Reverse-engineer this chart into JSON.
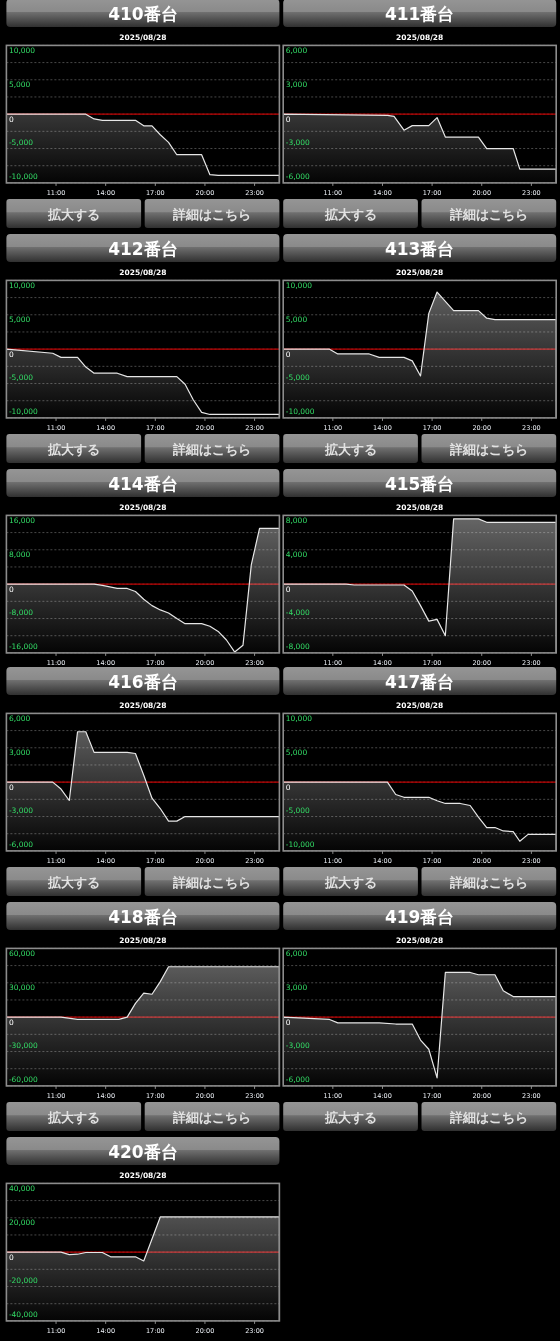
{
  "chart_data": [
    {
      "type": "area",
      "title": "410番台",
      "subtitle": "2025/08/28",
      "x": [
        8,
        12.8,
        13.3,
        13.8,
        15.8,
        16.3,
        16.8,
        17.3,
        17.8,
        18.3,
        19.8,
        20.3,
        20.8,
        24.5
      ],
      "values": [
        0,
        0,
        -700,
        -900,
        -900,
        -1700,
        -1700,
        -3000,
        -4100,
        -5900,
        -5900,
        -8800,
        -8900,
        -8900
      ],
      "color": "#e6e6e6",
      "xlim": [
        8,
        24.5
      ],
      "xticks": [
        {
          "value": 11,
          "label": "11:00"
        },
        {
          "value": 14,
          "label": "14:00"
        },
        {
          "value": 17,
          "label": "17:00"
        },
        {
          "value": 20,
          "label": "20:00"
        },
        {
          "value": 23,
          "label": "23:00"
        }
      ],
      "ylim": [
        -10000,
        10000
      ],
      "yticks": [
        {
          "value": -10000,
          "label": "-10,000"
        },
        {
          "value": -7500,
          "label": null
        },
        {
          "value": -5000,
          "label": "-5,000"
        },
        {
          "value": -2500,
          "label": null
        },
        {
          "value": 0,
          "label": "0"
        },
        {
          "value": 2500,
          "label": null
        },
        {
          "value": 5000,
          "label": "5,000"
        },
        {
          "value": 7500,
          "label": null
        },
        {
          "value": 10000,
          "label": "10,000"
        }
      ],
      "grid": "y",
      "ref_lines": [
        {
          "axis": "y",
          "value": 0,
          "color": "#c00000"
        }
      ],
      "annotations": [
        "拡大する",
        "詳細はこちら"
      ]
    },
    {
      "type": "area",
      "title": "411番台",
      "subtitle": "2025/08/28",
      "x": [
        8,
        14.3,
        14.7,
        15.3,
        15.8,
        16.8,
        17.3,
        17.8,
        19.8,
        20.3,
        21.9,
        22.3,
        24.5
      ],
      "values": [
        0,
        -100,
        -200,
        -1400,
        -1000,
        -1000,
        -300,
        -2000,
        -2000,
        -3000,
        -3000,
        -4800,
        -4800
      ],
      "color": "#e6e6e6",
      "xlim": [
        8,
        24.5
      ],
      "xticks": [
        {
          "value": 11,
          "label": "11:00"
        },
        {
          "value": 14,
          "label": "14:00"
        },
        {
          "value": 17,
          "label": "17:00"
        },
        {
          "value": 20,
          "label": "20:00"
        },
        {
          "value": 23,
          "label": "23:00"
        }
      ],
      "ylim": [
        -6000,
        6000
      ],
      "yticks": [
        {
          "value": -6000,
          "label": "-6,000"
        },
        {
          "value": -4500,
          "label": null
        },
        {
          "value": -3000,
          "label": "-3,000"
        },
        {
          "value": -1500,
          "label": null
        },
        {
          "value": 0,
          "label": "0"
        },
        {
          "value": 1500,
          "label": null
        },
        {
          "value": 3000,
          "label": "3,000"
        },
        {
          "value": 4500,
          "label": null
        },
        {
          "value": 6000,
          "label": "6,000"
        }
      ],
      "grid": "y",
      "ref_lines": [
        {
          "axis": "y",
          "value": 0,
          "color": "#c00000"
        }
      ],
      "annotations": [
        "拡大する",
        "詳細はこちら"
      ]
    },
    {
      "type": "area",
      "title": "412番台",
      "subtitle": "2025/08/28",
      "x": [
        8,
        10.8,
        11.3,
        12.3,
        12.8,
        13.3,
        14.7,
        15.3,
        18.3,
        18.8,
        19.3,
        19.8,
        20.3,
        24.5
      ],
      "values": [
        0,
        -600,
        -1200,
        -1200,
        -2600,
        -3500,
        -3500,
        -4000,
        -4000,
        -5100,
        -7400,
        -9200,
        -9500,
        -9500
      ],
      "color": "#e6e6e6",
      "xlim": [
        8,
        24.5
      ],
      "xticks": [
        {
          "value": 11,
          "label": "11:00"
        },
        {
          "value": 14,
          "label": "14:00"
        },
        {
          "value": 17,
          "label": "17:00"
        },
        {
          "value": 20,
          "label": "20:00"
        },
        {
          "value": 23,
          "label": "23:00"
        }
      ],
      "ylim": [
        -10000,
        10000
      ],
      "yticks": [
        {
          "value": -10000,
          "label": "-10,000"
        },
        {
          "value": -7500,
          "label": null
        },
        {
          "value": -5000,
          "label": "-5,000"
        },
        {
          "value": -2500,
          "label": null
        },
        {
          "value": 0,
          "label": "0"
        },
        {
          "value": 2500,
          "label": null
        },
        {
          "value": 5000,
          "label": "5,000"
        },
        {
          "value": 7500,
          "label": null
        },
        {
          "value": 10000,
          "label": "10,000"
        }
      ],
      "grid": "y",
      "ref_lines": [
        {
          "axis": "y",
          "value": 0,
          "color": "#c00000"
        }
      ],
      "annotations": [
        "拡大する",
        "詳細はこちら"
      ]
    },
    {
      "type": "area",
      "title": "413番台",
      "subtitle": "2025/08/28",
      "x": [
        8,
        10.8,
        11.3,
        13.2,
        13.8,
        15.3,
        15.8,
        16.3,
        16.8,
        17.3,
        18.3,
        19.8,
        20.3,
        20.8,
        24.5
      ],
      "values": [
        0,
        0,
        -700,
        -700,
        -1200,
        -1200,
        -1700,
        -3900,
        5200,
        8300,
        5600,
        5600,
        4500,
        4300,
        4300
      ],
      "color": "#e6e6e6",
      "xlim": [
        8,
        24.5
      ],
      "xticks": [
        {
          "value": 11,
          "label": "11:00"
        },
        {
          "value": 14,
          "label": "14:00"
        },
        {
          "value": 17,
          "label": "17:00"
        },
        {
          "value": 20,
          "label": "20:00"
        },
        {
          "value": 23,
          "label": "23:00"
        }
      ],
      "ylim": [
        -10000,
        10000
      ],
      "yticks": [
        {
          "value": -10000,
          "label": "-10,000"
        },
        {
          "value": -7500,
          "label": null
        },
        {
          "value": -5000,
          "label": "-5,000"
        },
        {
          "value": -2500,
          "label": null
        },
        {
          "value": 0,
          "label": "0"
        },
        {
          "value": 2500,
          "label": null
        },
        {
          "value": 5000,
          "label": "5,000"
        },
        {
          "value": 7500,
          "label": null
        },
        {
          "value": 10000,
          "label": "10,000"
        }
      ],
      "grid": "y",
      "ref_lines": [
        {
          "axis": "y",
          "value": 0,
          "color": "#c00000"
        }
      ],
      "annotations": [
        "拡大する",
        "詳細はこちら"
      ]
    },
    {
      "type": "area",
      "title": "414番台",
      "subtitle": "2025/08/28",
      "x": [
        8,
        13.3,
        13.8,
        14.7,
        15.3,
        15.8,
        16.3,
        16.8,
        17.3,
        17.8,
        18.3,
        18.8,
        19.8,
        20.3,
        20.8,
        21.3,
        21.8,
        22.3,
        22.8,
        23.3,
        24.5
      ],
      "values": [
        0,
        0,
        -300,
        -1000,
        -1000,
        -1700,
        -3500,
        -5000,
        -6000,
        -6700,
        -8000,
        -9200,
        -9200,
        -9800,
        -11000,
        -13000,
        -15800,
        -14200,
        4500,
        13000,
        13000
      ],
      "color": "#e6e6e6",
      "xlim": [
        8,
        24.5
      ],
      "xticks": [
        {
          "value": 11,
          "label": "11:00"
        },
        {
          "value": 14,
          "label": "14:00"
        },
        {
          "value": 17,
          "label": "17:00"
        },
        {
          "value": 20,
          "label": "20:00"
        },
        {
          "value": 23,
          "label": "23:00"
        }
      ],
      "ylim": [
        -16000,
        16000
      ],
      "yticks": [
        {
          "value": -16000,
          "label": "-16,000"
        },
        {
          "value": -12000,
          "label": null
        },
        {
          "value": -8000,
          "label": "-8,000"
        },
        {
          "value": -4000,
          "label": null
        },
        {
          "value": 0,
          "label": "0"
        },
        {
          "value": 4000,
          "label": null
        },
        {
          "value": 8000,
          "label": "8,000"
        },
        {
          "value": 12000,
          "label": null
        },
        {
          "value": 16000,
          "label": "16,000"
        }
      ],
      "grid": "y",
      "ref_lines": [
        {
          "axis": "y",
          "value": 0,
          "color": "#c00000"
        }
      ]
    },
    {
      "type": "area",
      "title": "415番台",
      "subtitle": "2025/08/28",
      "x": [
        8,
        11.8,
        12.3,
        15.3,
        15.8,
        16.3,
        16.8,
        17.3,
        17.8,
        18.3,
        19.8,
        20.3,
        24.5
      ],
      "values": [
        0,
        0,
        -100,
        -100,
        -800,
        -2500,
        -4300,
        -4100,
        -6000,
        7600,
        7600,
        7200,
        7200
      ],
      "color": "#e6e6e6",
      "xlim": [
        8,
        24.5
      ],
      "xticks": [
        {
          "value": 11,
          "label": "11:00"
        },
        {
          "value": 14,
          "label": "14:00"
        },
        {
          "value": 17,
          "label": "17:00"
        },
        {
          "value": 20,
          "label": "20:00"
        },
        {
          "value": 23,
          "label": "23:00"
        }
      ],
      "ylim": [
        -8000,
        8000
      ],
      "yticks": [
        {
          "value": -8000,
          "label": "-8,000"
        },
        {
          "value": -6000,
          "label": null
        },
        {
          "value": -4000,
          "label": "-4,000"
        },
        {
          "value": -2000,
          "label": null
        },
        {
          "value": 0,
          "label": "0"
        },
        {
          "value": 2000,
          "label": null
        },
        {
          "value": 4000,
          "label": "4,000"
        },
        {
          "value": 6000,
          "label": null
        },
        {
          "value": 8000,
          "label": "8,000"
        }
      ],
      "grid": "y",
      "ref_lines": [
        {
          "axis": "y",
          "value": 0,
          "color": "#c00000"
        }
      ]
    },
    {
      "type": "area",
      "title": "416番台",
      "subtitle": "2025/08/28",
      "x": [
        8,
        10.8,
        11.3,
        11.8,
        12.3,
        12.8,
        13.3,
        15.3,
        15.8,
        16.3,
        16.8,
        17.3,
        17.8,
        18.3,
        18.8,
        24.5
      ],
      "values": [
        0,
        0,
        -600,
        -1600,
        4400,
        4400,
        2600,
        2600,
        2500,
        600,
        -1400,
        -2300,
        -3400,
        -3400,
        -3000,
        -3000
      ],
      "color": "#e6e6e6",
      "xlim": [
        8,
        24.5
      ],
      "xticks": [
        {
          "value": 11,
          "label": "11:00"
        },
        {
          "value": 14,
          "label": "14:00"
        },
        {
          "value": 17,
          "label": "17:00"
        },
        {
          "value": 20,
          "label": "20:00"
        },
        {
          "value": 23,
          "label": "23:00"
        }
      ],
      "ylim": [
        -6000,
        6000
      ],
      "yticks": [
        {
          "value": -6000,
          "label": "-6,000"
        },
        {
          "value": -4500,
          "label": null
        },
        {
          "value": -3000,
          "label": "-3,000"
        },
        {
          "value": -1500,
          "label": null
        },
        {
          "value": 0,
          "label": "0"
        },
        {
          "value": 1500,
          "label": null
        },
        {
          "value": 3000,
          "label": "3,000"
        },
        {
          "value": 4500,
          "label": null
        },
        {
          "value": 6000,
          "label": "6,000"
        }
      ],
      "grid": "y",
      "ref_lines": [
        {
          "axis": "y",
          "value": 0,
          "color": "#c00000"
        }
      ],
      "annotations": [
        "拡大する",
        "詳細はこちら"
      ]
    },
    {
      "type": "area",
      "title": "417番台",
      "subtitle": "2025/08/28",
      "x": [
        8,
        14.3,
        14.8,
        15.3,
        16.8,
        17.3,
        17.8,
        18.7,
        19.3,
        19.8,
        20.3,
        20.8,
        21.3,
        21.9,
        22.3,
        22.8,
        24.5
      ],
      "values": [
        0,
        0,
        -1800,
        -2200,
        -2200,
        -2700,
        -3100,
        -3100,
        -3400,
        -5100,
        -6600,
        -6600,
        -7100,
        -7200,
        -8600,
        -7600,
        -7600
      ],
      "color": "#e6e6e6",
      "xlim": [
        8,
        24.5
      ],
      "xticks": [
        {
          "value": 11,
          "label": "11:00"
        },
        {
          "value": 14,
          "label": "14:00"
        },
        {
          "value": 17,
          "label": "17:00"
        },
        {
          "value": 20,
          "label": "20:00"
        },
        {
          "value": 23,
          "label": "23:00"
        }
      ],
      "ylim": [
        -10000,
        10000
      ],
      "yticks": [
        {
          "value": -10000,
          "label": "-10,000"
        },
        {
          "value": -7500,
          "label": null
        },
        {
          "value": -5000,
          "label": "-5,000"
        },
        {
          "value": -2500,
          "label": null
        },
        {
          "value": 0,
          "label": "0"
        },
        {
          "value": 2500,
          "label": null
        },
        {
          "value": 5000,
          "label": "5,000"
        },
        {
          "value": 7500,
          "label": null
        },
        {
          "value": 10000,
          "label": "10,000"
        }
      ],
      "grid": "y",
      "ref_lines": [
        {
          "axis": "y",
          "value": 0,
          "color": "#c00000"
        }
      ],
      "annotations": [
        "拡大する",
        "詳細はこちら"
      ]
    },
    {
      "type": "area",
      "title": "418番台",
      "subtitle": "2025/08/28",
      "x": [
        8,
        11.3,
        12.3,
        14.8,
        15.3,
        15.8,
        16.3,
        16.8,
        17.3,
        17.8,
        24.5
      ],
      "values": [
        0,
        0,
        -2000,
        -2000,
        0,
        12000,
        21000,
        20000,
        31000,
        44000,
        44000
      ],
      "color": "#e6e6e6",
      "xlim": [
        8,
        24.5
      ],
      "xticks": [
        {
          "value": 11,
          "label": "11:00"
        },
        {
          "value": 14,
          "label": "14:00"
        },
        {
          "value": 17,
          "label": "17:00"
        },
        {
          "value": 20,
          "label": "20:00"
        },
        {
          "value": 23,
          "label": "23:00"
        }
      ],
      "ylim": [
        -60000,
        60000
      ],
      "yticks": [
        {
          "value": -60000,
          "label": "-60,000"
        },
        {
          "value": -45000,
          "label": null
        },
        {
          "value": -30000,
          "label": "-30,000"
        },
        {
          "value": -15000,
          "label": null
        },
        {
          "value": 0,
          "label": "0"
        },
        {
          "value": 15000,
          "label": null
        },
        {
          "value": 30000,
          "label": "30,000"
        },
        {
          "value": 45000,
          "label": null
        },
        {
          "value": 60000,
          "label": "60,000"
        }
      ],
      "grid": "y",
      "ref_lines": [
        {
          "axis": "y",
          "value": 0,
          "color": "#c00000"
        }
      ],
      "annotations": [
        "拡大する",
        "詳細はこちら"
      ]
    },
    {
      "type": "area",
      "title": "419番台",
      "subtitle": "2025/08/28",
      "x": [
        8,
        10.8,
        11.3,
        13.8,
        14.8,
        15.8,
        16.3,
        16.8,
        17.3,
        17.8,
        19.3,
        19.8,
        20.8,
        21.3,
        21.9,
        24.5
      ],
      "values": [
        0,
        -200,
        -500,
        -500,
        -600,
        -600,
        -2000,
        -2800,
        -5300,
        3900,
        3900,
        3700,
        3700,
        2300,
        1800,
        1800
      ],
      "color": "#e6e6e6",
      "xlim": [
        8,
        24.5
      ],
      "xticks": [
        {
          "value": 11,
          "label": "11:00"
        },
        {
          "value": 14,
          "label": "14:00"
        },
        {
          "value": 17,
          "label": "17:00"
        },
        {
          "value": 20,
          "label": "20:00"
        },
        {
          "value": 23,
          "label": "23:00"
        }
      ],
      "ylim": [
        -6000,
        6000
      ],
      "yticks": [
        {
          "value": -6000,
          "label": "-6,000"
        },
        {
          "value": -4500,
          "label": null
        },
        {
          "value": -3000,
          "label": "-3,000"
        },
        {
          "value": -1500,
          "label": null
        },
        {
          "value": 0,
          "label": "0"
        },
        {
          "value": 1500,
          "label": null
        },
        {
          "value": 3000,
          "label": "3,000"
        },
        {
          "value": 4500,
          "label": null
        },
        {
          "value": 6000,
          "label": "6,000"
        }
      ],
      "grid": "y",
      "ref_lines": [
        {
          "axis": "y",
          "value": 0,
          "color": "#c00000"
        }
      ],
      "annotations": [
        "拡大する",
        "詳細はこちら"
      ]
    },
    {
      "type": "area",
      "title": "420番台",
      "subtitle": "2025/08/28",
      "x": [
        8,
        11.3,
        11.8,
        12.3,
        12.8,
        13.8,
        14.3,
        15.8,
        16.3,
        17.3,
        24.5
      ],
      "values": [
        0,
        0,
        -1400,
        -1200,
        -200,
        -200,
        -2700,
        -2700,
        -5100,
        20500,
        20500
      ],
      "color": "#e6e6e6",
      "xlim": [
        8,
        24.5
      ],
      "xticks": [
        {
          "value": 11,
          "label": "11:00"
        },
        {
          "value": 14,
          "label": "14:00"
        },
        {
          "value": 17,
          "label": "17:00"
        },
        {
          "value": 20,
          "label": "20:00"
        },
        {
          "value": 23,
          "label": "23:00"
        }
      ],
      "ylim": [
        -40000,
        40000
      ],
      "yticks": [
        {
          "value": -40000,
          "label": "-40,000"
        },
        {
          "value": -30000,
          "label": null
        },
        {
          "value": -20000,
          "label": "-20,000"
        },
        {
          "value": -10000,
          "label": null
        },
        {
          "value": 0,
          "label": "0"
        },
        {
          "value": 10000,
          "label": null
        },
        {
          "value": 20000,
          "label": "20,000"
        },
        {
          "value": 30000,
          "label": null
        },
        {
          "value": 40000,
          "label": "40,000"
        }
      ],
      "grid": "y",
      "ref_lines": [
        {
          "axis": "y",
          "value": 0,
          "color": "#c00000"
        }
      ]
    }
  ]
}
